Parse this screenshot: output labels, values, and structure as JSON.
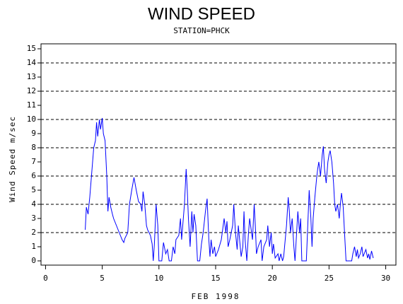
{
  "chart_data": {
    "type": "line",
    "title": "WIND SPEED",
    "subtitle": "STATION=PHCK",
    "x_label": "FEB 1998",
    "y_label": "Wind Speed m/sec",
    "color": "#0000ff",
    "x": [
      3.5,
      3.6,
      3.75,
      3.9,
      4.0,
      4.1,
      4.25,
      4.4,
      4.5,
      4.6,
      4.75,
      4.85,
      5.0,
      5.1,
      5.25,
      5.4,
      5.5,
      5.6,
      5.75,
      5.9,
      6.0,
      6.25,
      6.5,
      6.75,
      6.9,
      7.0,
      7.25,
      7.4,
      7.6,
      7.8,
      8.0,
      8.2,
      8.4,
      8.5,
      8.6,
      8.75,
      8.9,
      9.0,
      9.25,
      9.4,
      9.5,
      9.6,
      9.75,
      9.9,
      10.0,
      10.25,
      10.4,
      10.6,
      10.75,
      10.9,
      11.1,
      11.25,
      11.4,
      11.5,
      11.75,
      11.9,
      12.0,
      12.25,
      12.4,
      12.5,
      12.6,
      12.75,
      12.9,
      13.0,
      13.1,
      13.25,
      13.4,
      13.6,
      13.75,
      13.9,
      14.1,
      14.25,
      14.4,
      14.5,
      14.6,
      14.75,
      14.9,
      15.0,
      15.25,
      15.5,
      15.75,
      15.9,
      16.0,
      16.1,
      16.25,
      16.5,
      16.6,
      16.75,
      16.9,
      17.0,
      17.25,
      17.4,
      17.5,
      17.6,
      17.75,
      17.9,
      18.0,
      18.25,
      18.4,
      18.5,
      18.6,
      18.75,
      19.0,
      19.1,
      19.25,
      19.5,
      19.6,
      19.75,
      19.9,
      20.0,
      20.1,
      20.25,
      20.5,
      20.6,
      20.75,
      20.9,
      21.0,
      21.25,
      21.4,
      21.5,
      21.6,
      21.75,
      21.9,
      22.0,
      22.25,
      22.4,
      22.5,
      22.6,
      23.0,
      23.1,
      23.25,
      23.4,
      23.5,
      23.6,
      23.75,
      23.9,
      24.0,
      24.1,
      24.25,
      24.4,
      24.5,
      24.6,
      24.75,
      24.9,
      25.0,
      25.1,
      25.25,
      25.4,
      25.5,
      25.6,
      25.75,
      25.9,
      26.0,
      26.1,
      26.25,
      26.4,
      26.5,
      27.0,
      27.1,
      27.25,
      27.4,
      27.5,
      27.6,
      27.75,
      27.9,
      28.0,
      28.25,
      28.4,
      28.5,
      28.6,
      28.75,
      28.9
    ],
    "values": [
      2.2,
      3.8,
      3.3,
      4.5,
      5.5,
      6.5,
      8.0,
      8.5,
      9.8,
      8.8,
      10.0,
      9.3,
      10.1,
      9.0,
      8.5,
      6.0,
      3.5,
      4.5,
      3.8,
      3.3,
      3.0,
      2.5,
      2.0,
      1.5,
      1.3,
      1.6,
      2.0,
      4.0,
      5.0,
      5.9,
      5.0,
      4.2,
      4.0,
      3.5,
      4.9,
      4.0,
      2.5,
      2.2,
      1.8,
      1.2,
      0,
      1.2,
      4.0,
      2.5,
      0,
      0,
      1.3,
      0.5,
      0.8,
      0,
      0,
      1.0,
      0.5,
      1.5,
      1.8,
      3.0,
      1.5,
      4.0,
      6.5,
      5.0,
      3.0,
      1.0,
      3.5,
      2.0,
      3.3,
      2.5,
      0,
      0,
      1.2,
      2.0,
      3.5,
      4.4,
      1.5,
      0.3,
      1.5,
      0.5,
      1.0,
      0.3,
      0.8,
      1.5,
      3.0,
      2.0,
      2.8,
      1.0,
      1.5,
      2.5,
      4.0,
      2.0,
      0.8,
      2.5,
      0.3,
      1.0,
      3.5,
      1.5,
      0,
      2.0,
      3.0,
      1.5,
      4.0,
      2.5,
      0.5,
      1.0,
      1.5,
      0,
      1.0,
      1.5,
      2.5,
      1.0,
      2.0,
      0.5,
      1.2,
      0.2,
      0.5,
      0,
      0.5,
      0,
      0.3,
      2.5,
      4.5,
      3.5,
      2.0,
      3.0,
      1.0,
      0,
      3.5,
      2.0,
      3.0,
      0,
      0,
      2.0,
      5.0,
      3.0,
      1.0,
      3.0,
      4.5,
      5.8,
      6.5,
      7.0,
      6.0,
      7.5,
      8.1,
      6.5,
      5.5,
      7.0,
      7.5,
      7.8,
      7.0,
      5.5,
      4.0,
      3.5,
      4.0,
      3.0,
      4.0,
      4.8,
      3.8,
      1.5,
      0,
      0,
      0.5,
      1.0,
      0.3,
      0.8,
      0.2,
      0.5,
      1.0,
      0.3,
      0.8,
      0.2,
      0.5,
      0.1,
      0.7,
      0.2
    ],
    "xlim": [
      -0.4,
      30.9
    ],
    "xticks": [
      0,
      5,
      10,
      15,
      20,
      25,
      30
    ],
    "ylim": [
      -0.3,
      15.35
    ],
    "yticks": [
      0,
      1,
      2,
      3,
      4,
      5,
      6,
      7,
      8,
      9,
      10,
      11,
      12,
      13,
      14,
      15
    ],
    "grid_yvalues": [
      2,
      4,
      6,
      8,
      10,
      12,
      14
    ]
  }
}
